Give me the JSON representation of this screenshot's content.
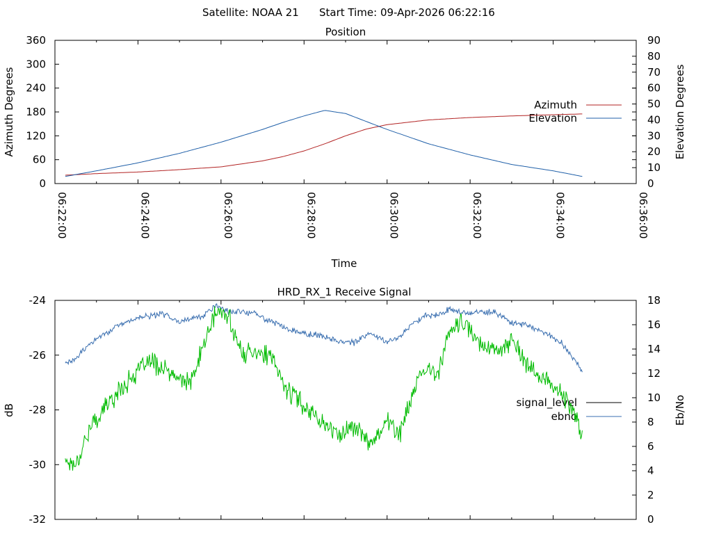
{
  "header": {
    "satellite": "Satellite: NOAA 21",
    "start_time": "Start Time: 09-Apr-2026 06:22:16"
  },
  "colors": {
    "azimuth": "#b22222",
    "elevation": "#1f5fa8",
    "signal_level": "#00bb00",
    "ebno_line": "#3a6fb0",
    "signal_legend": "#000000"
  },
  "chart_data": [
    {
      "type": "line",
      "title": "Position",
      "xlabel": "Time",
      "ylabel": "Azimuth Degrees",
      "y2label": "Elevation Degrees",
      "x_ticks": [
        "06:22:00",
        "06:24:00",
        "06:26:00",
        "06:28:00",
        "06:30:00",
        "06:32:00",
        "06:34:00",
        "06:36:00"
      ],
      "x_range_min": [
        0,
        14
      ],
      "ylim": [
        0,
        360
      ],
      "y_ticks": [
        "0",
        "60",
        "120",
        "180",
        "240",
        "300",
        "360"
      ],
      "y2lim": [
        0,
        90
      ],
      "y2_ticks": [
        "0",
        "10",
        "20",
        "30",
        "40",
        "50",
        "60",
        "70",
        "80",
        "90"
      ],
      "legend_position": "right",
      "series": [
        {
          "name": "Azimuth",
          "axis": "left",
          "x_min": [
            0.25,
            1,
            2,
            3,
            4,
            5,
            5.5,
            6,
            6.5,
            7,
            7.5,
            8,
            9,
            10,
            11,
            12,
            12.7
          ],
          "values": [
            21,
            25,
            29,
            35,
            42,
            57,
            68,
            82,
            100,
            120,
            137,
            148,
            160,
            166,
            170,
            173,
            175
          ]
        },
        {
          "name": "Elevation",
          "axis": "right",
          "x_min": [
            0.25,
            1,
            2,
            3,
            4,
            5,
            5.5,
            6,
            6.5,
            7,
            7.5,
            8,
            9,
            10,
            11,
            12,
            12.7
          ],
          "values": [
            4.5,
            8,
            13,
            19,
            26,
            34,
            38.5,
            42.5,
            46,
            44,
            39,
            34,
            25,
            18,
            12,
            8,
            4.5
          ]
        }
      ]
    },
    {
      "type": "line",
      "title": "HRD_RX_1 Receive Signal",
      "xlabel": "",
      "ylabel": "dB",
      "y2label": "Eb/No",
      "ylim": [
        -32,
        -24
      ],
      "y_ticks": [
        "-32",
        "-30",
        "-28",
        "-26",
        "-24"
      ],
      "y2lim": [
        0,
        18
      ],
      "y2_ticks": [
        "0",
        "2",
        "4",
        "6",
        "8",
        "10",
        "12",
        "14",
        "16",
        "18"
      ],
      "x_range_min": [
        0,
        14
      ],
      "legend_position": "right",
      "series": [
        {
          "name": "signal_level",
          "axis": "left",
          "x_min": [
            0.25,
            0.5,
            0.8,
            1.2,
            1.6,
            2,
            2.3,
            2.6,
            3,
            3.3,
            3.6,
            3.9,
            4.2,
            4.5,
            4.8,
            5.2,
            5.6,
            6,
            6.4,
            6.8,
            7.2,
            7.6,
            8,
            8.3,
            8.6,
            8.9,
            9.2,
            9.5,
            9.8,
            10.2,
            10.6,
            11,
            11.4,
            11.8,
            12.2,
            12.5,
            12.7
          ],
          "values": [
            -29.8,
            -30.0,
            -28.8,
            -27.9,
            -27.2,
            -26.6,
            -26.2,
            -26.5,
            -26.9,
            -27.0,
            -25.5,
            -24.4,
            -24.6,
            -26.0,
            -25.8,
            -26.1,
            -27.3,
            -27.8,
            -28.4,
            -28.9,
            -28.6,
            -29.2,
            -28.4,
            -28.9,
            -27.5,
            -26.5,
            -26.7,
            -25.2,
            -24.8,
            -25.5,
            -25.8,
            -25.5,
            -26.4,
            -26.9,
            -27.4,
            -28.1,
            -29.0
          ],
          "noise_db": 0.45,
          "noise_seed": 17
        },
        {
          "name": "ebno",
          "axis": "right",
          "x_min": [
            0.25,
            0.5,
            0.8,
            1.2,
            1.6,
            2,
            2.3,
            2.6,
            3,
            3.3,
            3.6,
            3.9,
            4.2,
            4.5,
            4.8,
            5.2,
            5.6,
            6,
            6.4,
            6.8,
            7.2,
            7.6,
            8,
            8.3,
            8.6,
            8.9,
            9.2,
            9.5,
            9.8,
            10.2,
            10.6,
            11,
            11.4,
            11.8,
            12.2,
            12.5,
            12.7
          ],
          "values": [
            12.8,
            13.2,
            14.3,
            15.3,
            16.0,
            16.6,
            16.7,
            16.9,
            16.3,
            16.5,
            16.8,
            17.6,
            17.0,
            17.1,
            16.9,
            16.3,
            15.7,
            15.3,
            15.1,
            14.7,
            14.5,
            15.3,
            14.6,
            15.0,
            16.0,
            16.8,
            16.8,
            17.3,
            17.0,
            17.0,
            17.0,
            16.2,
            15.9,
            15.3,
            14.5,
            13.2,
            12.2
          ],
          "noise_db": 0.3,
          "noise_seed": 29
        }
      ],
      "legend_entries": [
        "signal_level",
        "ebno"
      ]
    }
  ]
}
